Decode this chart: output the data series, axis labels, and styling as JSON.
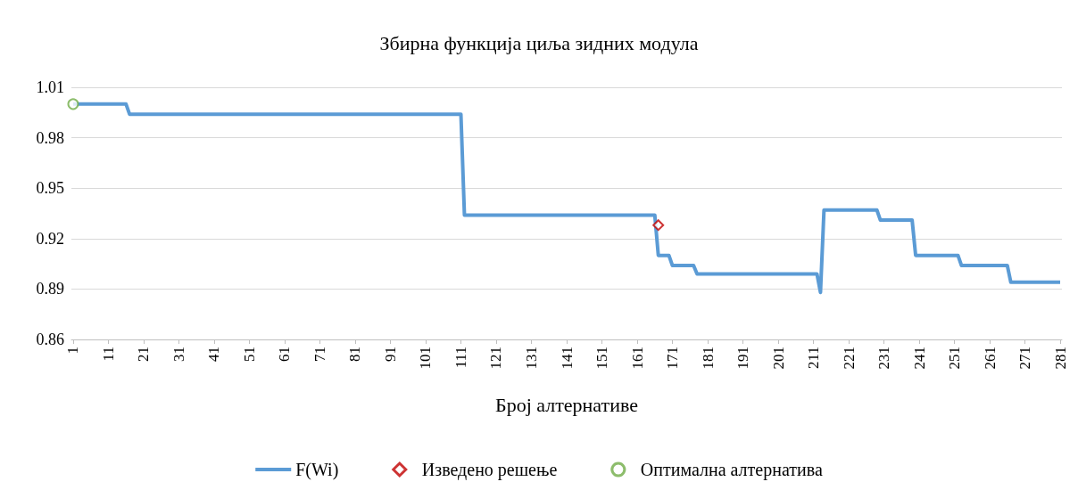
{
  "chart_data": {
    "type": "line",
    "title": "Збирна функција циља зидних модула",
    "xlabel": "Број алтернативе",
    "xlim": [
      0.5,
      281.5
    ],
    "xticks": [
      1,
      11,
      21,
      31,
      41,
      51,
      61,
      71,
      81,
      91,
      101,
      111,
      121,
      131,
      141,
      151,
      161,
      171,
      181,
      191,
      201,
      211,
      221,
      231,
      241,
      251,
      261,
      271,
      281
    ],
    "ylim": [
      0.86,
      1.01
    ],
    "yticks": [
      0.86,
      0.89,
      0.92,
      0.95,
      0.98,
      1.01
    ],
    "grid": "y",
    "legend": "bottom",
    "series": [
      {
        "name": "F(Wi)",
        "color": "#5b9bd5",
        "marker": "none",
        "x": [
          1,
          16,
          17,
          111,
          112,
          166,
          167,
          170,
          171,
          177,
          178,
          212,
          213,
          214,
          229,
          230,
          239,
          240,
          252,
          253,
          266,
          267,
          281
        ],
        "values": [
          1.0,
          1.0,
          0.994,
          0.994,
          0.934,
          0.934,
          0.91,
          0.91,
          0.904,
          0.904,
          0.899,
          0.899,
          0.888,
          0.937,
          0.937,
          0.931,
          0.931,
          0.91,
          0.91,
          0.904,
          0.904,
          0.894,
          0.894
        ]
      },
      {
        "name": "Изведено решење",
        "type": "scatter",
        "color": "#c00000",
        "marker": "diamond",
        "x": [
          167
        ],
        "values": [
          0.928
        ]
      },
      {
        "name": "Оптимална алтернатива",
        "type": "scatter",
        "color": "#70ad47",
        "marker": "circle",
        "x": [
          1
        ],
        "values": [
          1.0
        ]
      }
    ]
  }
}
